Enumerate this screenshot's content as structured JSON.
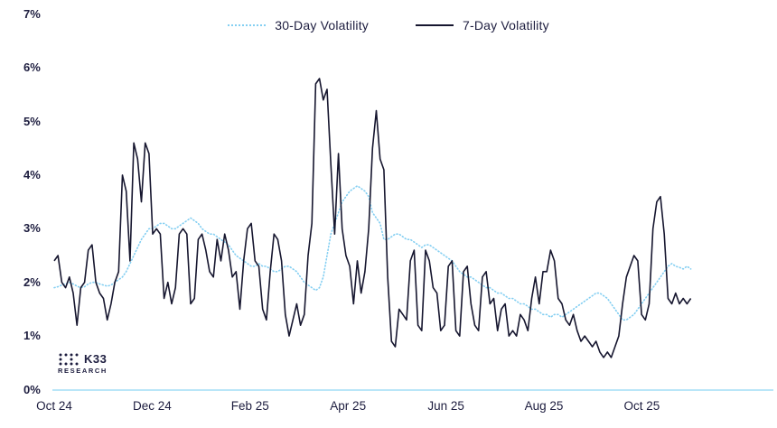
{
  "chart_data": {
    "type": "line",
    "title": "",
    "xlabel": "",
    "ylabel": "",
    "ylim": [
      0,
      7
    ],
    "grid": false,
    "legend_position": "top-center",
    "months_span": 13,
    "x_ticks": [
      {
        "label": "Oct 24",
        "month": 0
      },
      {
        "label": "Dec 24",
        "month": 2
      },
      {
        "label": "Feb 25",
        "month": 4
      },
      {
        "label": "Apr 25",
        "month": 6
      },
      {
        "label": "Jun 25",
        "month": 8
      },
      {
        "label": "Aug 25",
        "month": 10
      },
      {
        "label": "Oct 25",
        "month": 12
      }
    ],
    "y_ticks": [
      {
        "label": "0%",
        "value": 0
      },
      {
        "label": "1%",
        "value": 1
      },
      {
        "label": "2%",
        "value": 2
      },
      {
        "label": "3%",
        "value": 3
      },
      {
        "label": "4%",
        "value": 4
      },
      {
        "label": "5%",
        "value": 5
      },
      {
        "label": "6%",
        "value": 6
      },
      {
        "label": "7%",
        "value": 7
      }
    ],
    "series": [
      {
        "name": "30-Day Volatility",
        "color": "#84cff2",
        "style": "dotted",
        "values": [
          1.9,
          1.92,
          1.95,
          1.97,
          2.0,
          1.97,
          1.93,
          1.9,
          1.92,
          1.97,
          2.0,
          2.0,
          1.97,
          1.95,
          1.93,
          1.95,
          2.0,
          2.05,
          2.1,
          2.2,
          2.35,
          2.5,
          2.65,
          2.8,
          2.9,
          3.0,
          3.0,
          3.05,
          3.1,
          3.1,
          3.05,
          3.0,
          3.0,
          3.05,
          3.1,
          3.15,
          3.2,
          3.15,
          3.1,
          3.0,
          2.95,
          2.9,
          2.9,
          2.85,
          2.8,
          2.75,
          2.7,
          2.6,
          2.5,
          2.45,
          2.4,
          2.35,
          2.3,
          2.3,
          2.35,
          2.3,
          2.3,
          2.25,
          2.2,
          2.2,
          2.25,
          2.3,
          2.3,
          2.25,
          2.2,
          2.1,
          2.0,
          1.95,
          1.9,
          1.85,
          1.9,
          2.1,
          2.5,
          2.9,
          3.1,
          3.3,
          3.5,
          3.6,
          3.7,
          3.75,
          3.8,
          3.75,
          3.7,
          3.6,
          3.3,
          3.2,
          3.1,
          2.8,
          2.8,
          2.85,
          2.9,
          2.9,
          2.85,
          2.8,
          2.8,
          2.75,
          2.7,
          2.65,
          2.7,
          2.7,
          2.65,
          2.6,
          2.55,
          2.5,
          2.45,
          2.4,
          2.3,
          2.2,
          2.15,
          2.1,
          2.1,
          2.05,
          2.0,
          1.95,
          1.9,
          1.9,
          1.85,
          1.8,
          1.8,
          1.75,
          1.7,
          1.7,
          1.65,
          1.6,
          1.6,
          1.55,
          1.5,
          1.5,
          1.45,
          1.4,
          1.4,
          1.35,
          1.4,
          1.4,
          1.35,
          1.4,
          1.45,
          1.5,
          1.55,
          1.6,
          1.65,
          1.7,
          1.75,
          1.8,
          1.8,
          1.75,
          1.7,
          1.6,
          1.5,
          1.4,
          1.3,
          1.3,
          1.35,
          1.4,
          1.5,
          1.6,
          1.7,
          1.8,
          1.9,
          2.0,
          2.1,
          2.2,
          2.3,
          2.35,
          2.3,
          2.28,
          2.25,
          2.3,
          2.25
        ]
      },
      {
        "name": "7-Day Volatility",
        "color": "#16162f",
        "style": "solid",
        "values": [
          2.4,
          2.5,
          2.0,
          1.9,
          2.1,
          1.8,
          1.2,
          1.9,
          2.0,
          2.6,
          2.7,
          2.0,
          1.8,
          1.7,
          1.3,
          1.6,
          2.0,
          2.2,
          4.0,
          3.7,
          2.4,
          4.6,
          4.3,
          3.5,
          4.6,
          4.4,
          2.9,
          3.0,
          2.9,
          1.7,
          2.0,
          1.6,
          1.9,
          2.9,
          3.0,
          2.9,
          1.6,
          1.7,
          2.8,
          2.9,
          2.6,
          2.2,
          2.1,
          2.8,
          2.4,
          2.9,
          2.6,
          2.1,
          2.2,
          1.5,
          2.4,
          3.0,
          3.1,
          2.4,
          2.3,
          1.5,
          1.3,
          2.2,
          2.9,
          2.8,
          2.4,
          1.4,
          1.0,
          1.3,
          1.6,
          1.2,
          1.4,
          2.5,
          3.1,
          5.7,
          5.8,
          5.4,
          5.6,
          4.2,
          2.9,
          4.4,
          3.0,
          2.5,
          2.3,
          1.6,
          2.4,
          1.8,
          2.2,
          3.0,
          4.5,
          5.2,
          4.3,
          4.1,
          2.1,
          0.9,
          0.8,
          1.5,
          1.4,
          1.3,
          2.4,
          2.6,
          1.2,
          1.1,
          2.6,
          2.4,
          1.9,
          1.8,
          1.1,
          1.2,
          2.3,
          2.4,
          1.1,
          1.0,
          2.2,
          2.3,
          1.6,
          1.2,
          1.1,
          2.1,
          2.2,
          1.6,
          1.7,
          1.1,
          1.5,
          1.6,
          1.0,
          1.1,
          1.0,
          1.4,
          1.3,
          1.1,
          1.7,
          2.1,
          1.6,
          2.2,
          2.2,
          2.6,
          2.4,
          1.7,
          1.6,
          1.3,
          1.2,
          1.4,
          1.1,
          0.9,
          1.0,
          0.9,
          0.8,
          0.9,
          0.7,
          0.6,
          0.7,
          0.6,
          0.8,
          1.0,
          1.6,
          2.1,
          2.3,
          2.5,
          2.4,
          1.4,
          1.3,
          1.6,
          3.0,
          3.5,
          3.6,
          2.9,
          1.7,
          1.6,
          1.8,
          1.6,
          1.7,
          1.6,
          1.7
        ]
      }
    ]
  },
  "footer": {
    "logo_text": "K33",
    "logo_subtext": "RESEARCH"
  },
  "colors": {
    "axis_line": "#b9e6f8",
    "text": "#1d1d3f",
    "background": "#ffffff",
    "series_30d": "#84cff2",
    "series_7d": "#16162f"
  }
}
